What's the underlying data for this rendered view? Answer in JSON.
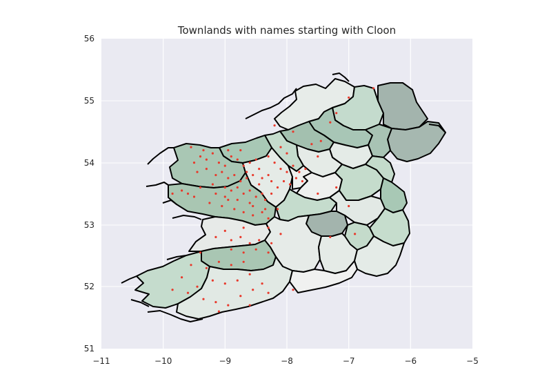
{
  "chart_data": {
    "type": "scatter",
    "title": "Townlands with names starting with Cloon",
    "xlabel": "",
    "ylabel": "",
    "xlim": [
      -11,
      -5
    ],
    "ylim": [
      51,
      56
    ],
    "x_ticks": [
      "−11",
      "−10",
      "−9",
      "−8",
      "−7",
      "−6",
      "−5"
    ],
    "y_ticks": [
      "51",
      "52",
      "53",
      "54",
      "55",
      "56"
    ],
    "grid": true,
    "colors": {
      "plot_background": "#eaeaf2",
      "county_border": "#000000",
      "point": "#e8392b",
      "choropleth_low": "#eceeed",
      "choropleth_high": "#a4b6ae"
    },
    "series": [
      {
        "points": [
          [
            -9.55,
            54.25
          ],
          [
            -9.4,
            54.1
          ],
          [
            -9.3,
            54.05
          ],
          [
            -9.2,
            54.15
          ],
          [
            -9.1,
            54.0
          ],
          [
            -9.0,
            53.95
          ],
          [
            -8.9,
            54.1
          ],
          [
            -8.8,
            54.05
          ],
          [
            -8.7,
            53.95
          ],
          [
            -8.6,
            54.0
          ],
          [
            -8.5,
            54.05
          ],
          [
            -8.45,
            53.9
          ],
          [
            -9.45,
            53.85
          ],
          [
            -9.3,
            53.9
          ],
          [
            -9.15,
            53.8
          ],
          [
            -9.05,
            53.85
          ],
          [
            -8.95,
            53.75
          ],
          [
            -8.85,
            53.8
          ],
          [
            -8.75,
            53.7
          ],
          [
            -8.65,
            53.75
          ],
          [
            -8.55,
            53.8
          ],
          [
            -8.4,
            53.75
          ],
          [
            -8.3,
            53.8
          ],
          [
            -8.25,
            53.7
          ],
          [
            -9.2,
            53.65
          ],
          [
            -9.0,
            53.6
          ],
          [
            -8.9,
            53.55
          ],
          [
            -8.8,
            53.6
          ],
          [
            -8.7,
            53.5
          ],
          [
            -8.6,
            53.55
          ],
          [
            -8.5,
            53.45
          ],
          [
            -8.4,
            53.5
          ],
          [
            -8.35,
            53.4
          ],
          [
            -8.6,
            53.35
          ],
          [
            -8.8,
            53.4
          ],
          [
            -9.0,
            53.45
          ],
          [
            -9.6,
            53.5
          ],
          [
            -9.5,
            53.45
          ],
          [
            -9.7,
            53.55
          ],
          [
            -9.85,
            53.5
          ],
          [
            -9.25,
            53.35
          ],
          [
            -9.05,
            53.3
          ],
          [
            -8.85,
            53.25
          ],
          [
            -8.7,
            53.2
          ],
          [
            -8.55,
            53.15
          ],
          [
            -8.4,
            53.2
          ],
          [
            -8.3,
            53.1
          ],
          [
            -8.15,
            53.25
          ],
          [
            -8.1,
            53.9
          ],
          [
            -8.2,
            54.0
          ],
          [
            -8.0,
            53.85
          ],
          [
            -7.9,
            53.95
          ],
          [
            -7.8,
            53.85
          ],
          [
            -7.85,
            53.75
          ],
          [
            -8.05,
            53.7
          ],
          [
            -7.95,
            53.65
          ],
          [
            -8.15,
            53.6
          ],
          [
            -7.75,
            53.7
          ],
          [
            -7.7,
            53.9
          ],
          [
            -8.3,
            54.1
          ],
          [
            -8.0,
            54.15
          ],
          [
            -8.1,
            54.25
          ],
          [
            -7.6,
            54.3
          ],
          [
            -7.45,
            54.35
          ],
          [
            -7.3,
            54.65
          ],
          [
            -7.2,
            54.8
          ],
          [
            -7.0,
            55.05
          ],
          [
            -6.6,
            55.2
          ],
          [
            -7.9,
            54.5
          ],
          [
            -8.2,
            54.6
          ],
          [
            -7.5,
            54.1
          ],
          [
            -7.2,
            53.6
          ],
          [
            -7.5,
            53.5
          ],
          [
            -7.0,
            53.3
          ],
          [
            -6.9,
            52.85
          ],
          [
            -7.3,
            52.8
          ],
          [
            -8.3,
            52.95
          ],
          [
            -8.1,
            52.85
          ],
          [
            -8.7,
            52.95
          ],
          [
            -9.0,
            52.9
          ],
          [
            -9.15,
            52.8
          ],
          [
            -8.9,
            52.75
          ],
          [
            -8.75,
            52.8
          ],
          [
            -8.6,
            52.7
          ],
          [
            -8.45,
            52.75
          ],
          [
            -8.25,
            52.7
          ],
          [
            -8.9,
            52.6
          ],
          [
            -8.7,
            52.55
          ],
          [
            -8.5,
            52.6
          ],
          [
            -8.3,
            52.55
          ],
          [
            -9.4,
            52.55
          ],
          [
            -9.55,
            52.35
          ],
          [
            -9.3,
            52.3
          ],
          [
            -9.1,
            52.4
          ],
          [
            -8.9,
            52.35
          ],
          [
            -8.7,
            52.4
          ],
          [
            -8.6,
            52.2
          ],
          [
            -8.8,
            52.1
          ],
          [
            -9.0,
            52.05
          ],
          [
            -9.2,
            52.1
          ],
          [
            -9.45,
            52.0
          ],
          [
            -9.6,
            51.9
          ],
          [
            -9.35,
            51.8
          ],
          [
            -9.15,
            51.75
          ],
          [
            -8.95,
            51.7
          ],
          [
            -8.75,
            51.85
          ],
          [
            -8.55,
            51.95
          ],
          [
            -8.4,
            52.05
          ],
          [
            -9.7,
            52.15
          ],
          [
            -9.85,
            51.95
          ],
          [
            -9.1,
            51.6
          ],
          [
            -8.6,
            51.7
          ],
          [
            -8.3,
            51.9
          ],
          [
            -7.9,
            51.95
          ],
          [
            -9.5,
            54.0
          ],
          [
            -9.35,
            54.2
          ],
          [
            -8.95,
            54.2
          ],
          [
            -8.75,
            54.2
          ],
          [
            -8.65,
            53.85
          ],
          [
            -8.45,
            53.65
          ],
          [
            -8.25,
            53.5
          ],
          [
            -8.95,
            53.4
          ],
          [
            -9.15,
            53.5
          ],
          [
            -9.4,
            53.6
          ],
          [
            -8.55,
            53.3
          ],
          [
            -8.35,
            53.25
          ]
        ]
      }
    ]
  }
}
